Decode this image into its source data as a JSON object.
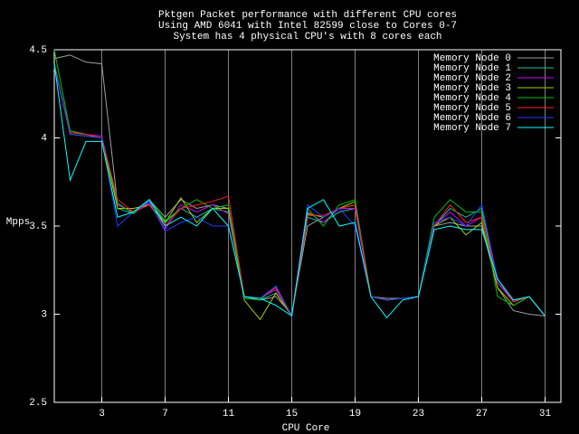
{
  "chart_data": {
    "type": "line",
    "title": [
      "Pktgen Packet performance with different CPU cores",
      "Using AMD 6041 with Intel 82599 close to Cores 0-7",
      "System has 4 physical CPU's with 8 cores each"
    ],
    "x_label": "CPU Core",
    "y_label": "Mpps",
    "x": [
      0,
      1,
      2,
      3,
      4,
      5,
      6,
      7,
      8,
      9,
      10,
      11,
      12,
      13,
      14,
      15,
      16,
      17,
      18,
      19,
      20,
      21,
      22,
      23,
      24,
      25,
      26,
      27,
      28,
      29,
      30,
      31
    ],
    "xlim": [
      0,
      32
    ],
    "xticks": [
      3,
      7,
      11,
      15,
      19,
      23,
      27,
      31
    ],
    "ylim": [
      2.5,
      4.5
    ],
    "yticks": [
      2.5,
      3,
      3.5,
      4,
      4.5
    ],
    "xgrid": true,
    "legend": "top-right",
    "series": [
      {
        "name": "Memory Node 0",
        "color": "#a0a0a0",
        "values": [
          4.45,
          4.47,
          4.43,
          4.42,
          3.62,
          3.58,
          3.65,
          3.55,
          3.65,
          3.6,
          3.62,
          3.6,
          3.1,
          3.08,
          3.1,
          3.0,
          3.5,
          3.55,
          3.6,
          3.62,
          3.1,
          3.09,
          3.09,
          3.1,
          3.5,
          3.52,
          3.5,
          3.5,
          3.15,
          3.02,
          3.0,
          2.99
        ]
      },
      {
        "name": "Memory Node 1",
        "color": "#20c0a0",
        "values": [
          4.4,
          4.04,
          4.02,
          4.0,
          3.6,
          3.57,
          3.64,
          3.52,
          3.6,
          3.55,
          3.6,
          3.58,
          3.09,
          3.08,
          3.12,
          2.99,
          3.55,
          3.52,
          3.58,
          3.6,
          3.1,
          3.08,
          3.09,
          3.1,
          3.5,
          3.6,
          3.55,
          3.6,
          3.18,
          3.08,
          3.1,
          2.99
        ]
      },
      {
        "name": "Memory Node 2",
        "color": "#d000ff",
        "values": [
          4.4,
          4.03,
          4.02,
          4.01,
          3.62,
          3.58,
          3.63,
          3.48,
          3.62,
          3.58,
          3.62,
          3.57,
          3.1,
          3.09,
          3.14,
          2.99,
          3.58,
          3.52,
          3.6,
          3.6,
          3.1,
          3.08,
          3.09,
          3.1,
          3.5,
          3.58,
          3.5,
          3.55,
          3.18,
          3.07,
          3.1,
          2.99
        ]
      },
      {
        "name": "Memory Node 3",
        "color": "#a0d000",
        "values": [
          4.42,
          4.02,
          4.01,
          4.0,
          3.6,
          3.6,
          3.62,
          3.52,
          3.66,
          3.52,
          3.6,
          3.6,
          3.08,
          2.97,
          3.12,
          2.99,
          3.57,
          3.55,
          3.6,
          3.64,
          3.1,
          3.08,
          3.09,
          3.1,
          3.5,
          3.55,
          3.45,
          3.52,
          3.15,
          3.05,
          3.1,
          2.99
        ]
      },
      {
        "name": "Memory Node 4",
        "color": "#00c000",
        "values": [
          4.5,
          4.04,
          4.02,
          4.0,
          3.63,
          3.57,
          3.65,
          3.53,
          3.6,
          3.65,
          3.6,
          3.62,
          3.09,
          3.08,
          3.16,
          2.99,
          3.6,
          3.5,
          3.62,
          3.65,
          3.1,
          3.08,
          3.09,
          3.1,
          3.55,
          3.65,
          3.58,
          3.58,
          3.1,
          3.05,
          3.1,
          2.99
        ]
      },
      {
        "name": "Memory Node 5",
        "color": "#ff2020",
        "values": [
          4.41,
          4.03,
          4.02,
          4.0,
          3.65,
          3.58,
          3.62,
          3.5,
          3.6,
          3.62,
          3.64,
          3.67,
          3.1,
          3.09,
          3.15,
          2.99,
          3.56,
          3.56,
          3.6,
          3.62,
          3.1,
          3.08,
          3.09,
          3.1,
          3.5,
          3.62,
          3.52,
          3.55,
          3.2,
          3.07,
          3.1,
          2.99
        ]
      },
      {
        "name": "Memory Node 6",
        "color": "#2040ff",
        "values": [
          4.41,
          4.02,
          4.01,
          4.0,
          3.5,
          3.58,
          3.64,
          3.47,
          3.52,
          3.55,
          3.5,
          3.5,
          3.1,
          3.09,
          3.16,
          2.99,
          3.62,
          3.55,
          3.6,
          3.5,
          3.1,
          3.08,
          3.09,
          3.1,
          3.52,
          3.55,
          3.5,
          3.62,
          3.2,
          3.08,
          3.1,
          2.99
        ]
      },
      {
        "name": "Memory Node 7",
        "color": "#00ffff",
        "values": [
          4.42,
          3.76,
          3.98,
          3.98,
          3.55,
          3.58,
          3.65,
          3.5,
          3.55,
          3.5,
          3.6,
          3.5,
          3.1,
          3.09,
          3.05,
          2.99,
          3.6,
          3.65,
          3.5,
          3.52,
          3.1,
          2.98,
          3.08,
          3.1,
          3.48,
          3.5,
          3.48,
          3.48,
          3.2,
          3.08,
          3.1,
          2.99
        ]
      }
    ]
  }
}
